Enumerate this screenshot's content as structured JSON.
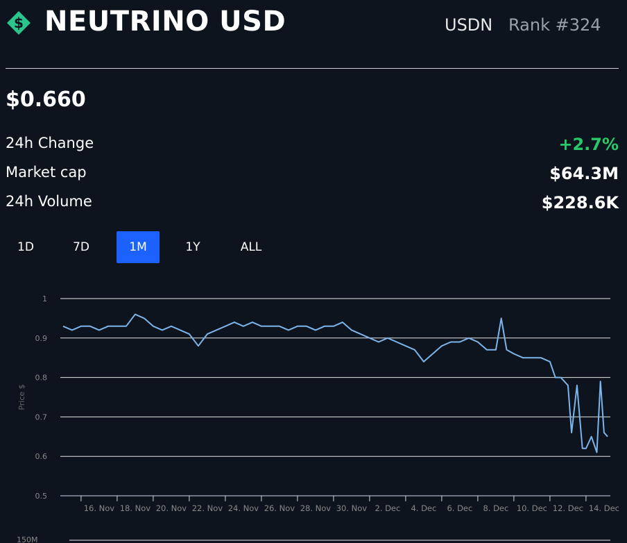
{
  "header": {
    "title": "NEUTRINO USD",
    "symbol": "USDN",
    "rank": "Rank #324"
  },
  "price": "$0.660",
  "stats": [
    {
      "label": "24h Change",
      "value": "+2.7%"
    },
    {
      "label": "Market cap",
      "value": "$64.3M"
    },
    {
      "label": "24h Volume",
      "value": "$228.6K"
    }
  ],
  "timeframes": [
    "1D",
    "7D",
    "1M",
    "1Y",
    "ALL"
  ],
  "active_timeframe": 2,
  "volume_axis_label": "150M",
  "chart_data": {
    "type": "line",
    "ylabel": "Price $",
    "color": "#7cb5ec",
    "x": [
      15.0,
      15.5,
      16,
      16.5,
      17,
      17.5,
      18,
      18.5,
      19,
      19.5,
      20,
      20.5,
      21,
      21.5,
      22,
      22.5,
      23,
      23.5,
      24,
      24.5,
      25,
      25.5,
      26,
      26.5,
      27,
      27.5,
      28,
      28.5,
      29,
      29.5,
      30,
      30.5,
      31,
      31.5,
      32,
      32.5,
      33,
      33.5,
      34,
      34.5,
      35,
      35.5,
      36,
      36.5,
      37,
      37.5,
      38,
      38.5,
      39,
      39.3,
      39.6,
      40,
      40.5,
      41,
      41.5,
      42,
      42.3,
      42.6,
      43,
      43.2,
      43.5,
      43.8,
      44,
      44.3,
      44.6,
      44.8,
      45.0,
      45.2
    ],
    "values": [
      0.93,
      0.92,
      0.93,
      0.93,
      0.92,
      0.93,
      0.93,
      0.93,
      0.96,
      0.95,
      0.93,
      0.92,
      0.93,
      0.92,
      0.91,
      0.88,
      0.91,
      0.92,
      0.93,
      0.94,
      0.93,
      0.94,
      0.93,
      0.93,
      0.93,
      0.92,
      0.93,
      0.93,
      0.92,
      0.93,
      0.93,
      0.94,
      0.92,
      0.91,
      0.9,
      0.89,
      0.9,
      0.89,
      0.88,
      0.87,
      0.84,
      0.86,
      0.88,
      0.89,
      0.89,
      0.9,
      0.89,
      0.87,
      0.87,
      0.95,
      0.87,
      0.86,
      0.85,
      0.85,
      0.85,
      0.84,
      0.8,
      0.8,
      0.78,
      0.66,
      0.78,
      0.62,
      0.62,
      0.65,
      0.61,
      0.79,
      0.66,
      0.65
    ],
    "xlim": [
      14.85,
      45.35
    ],
    "ylim": [
      0.5,
      1
    ],
    "yticks": [
      0.5,
      0.6,
      0.7,
      0.8,
      0.9,
      1
    ],
    "xticks": [
      {
        "value": 16,
        "label": "16. Nov"
      },
      {
        "value": 18,
        "label": "18. Nov"
      },
      {
        "value": 20,
        "label": "20. Nov"
      },
      {
        "value": 22,
        "label": "22. Nov"
      },
      {
        "value": 24,
        "label": "24. Nov"
      },
      {
        "value": 26,
        "label": "26. Nov"
      },
      {
        "value": 28,
        "label": "28. Nov"
      },
      {
        "value": 30,
        "label": "30. Nov"
      },
      {
        "value": 32,
        "label": "2. Dec"
      },
      {
        "value": 34,
        "label": "4. Dec"
      },
      {
        "value": 36,
        "label": "6. Dec"
      },
      {
        "value": 38,
        "label": "8. Dec"
      },
      {
        "value": 40,
        "label": "10. Dec"
      },
      {
        "value": 42,
        "label": "12. Dec"
      },
      {
        "value": 44,
        "label": "14. Dec"
      }
    ],
    "grid": true
  }
}
